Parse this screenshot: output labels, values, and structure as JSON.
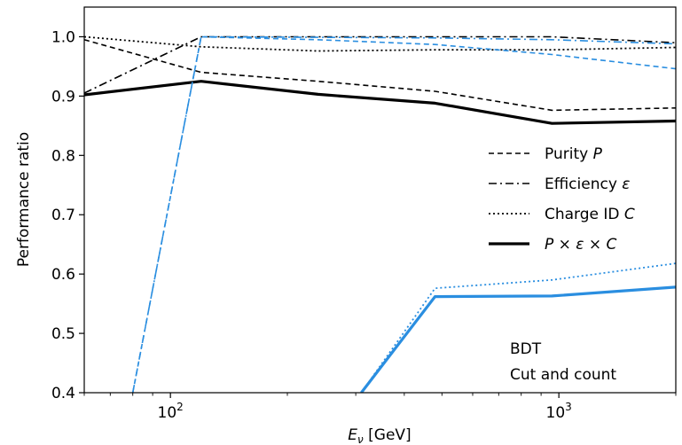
{
  "chart_data": {
    "type": "line",
    "xlabel_main": "E",
    "xlabel_sub": "ν",
    "xlabel_unit": " [GeV]",
    "ylabel": "Performance ratio",
    "xscale": "log",
    "xlim": [
      60,
      2000
    ],
    "ylim": [
      0.4,
      1.05
    ],
    "x_ticks": [
      {
        "value": 100,
        "base": "10",
        "exp": "2"
      },
      {
        "value": 1000,
        "base": "10",
        "exp": "3"
      }
    ],
    "y_ticks": [
      0.4,
      0.5,
      0.6,
      0.7,
      0.8,
      0.9,
      1.0
    ],
    "y_tick_labels": [
      "0.4",
      "0.5",
      "0.6",
      "0.7",
      "0.8",
      "0.9",
      "1.0"
    ],
    "grid": false,
    "legend_position": "center-right",
    "legend": [
      {
        "style": "dashed",
        "label": "Purity ",
        "symbol": "P"
      },
      {
        "style": "dashdot",
        "label": "Efficiency ",
        "symbol": "ε"
      },
      {
        "style": "dotted",
        "label": "Charge ID ",
        "symbol": "C"
      },
      {
        "style": "solid-thick",
        "label": "",
        "symbol": "P × ε × C"
      }
    ],
    "annotations": [
      {
        "text": "BDT",
        "color": "#000000"
      },
      {
        "text": "Cut and count",
        "color": "#2a8ee0"
      }
    ],
    "colors": {
      "bdt": "#000000",
      "cut_and_count": "#2a8ee0"
    },
    "series": [
      {
        "group": "BDT",
        "metric": "purity",
        "style": "dashed",
        "color": "#000000",
        "points": [
          [
            60,
            0.995
          ],
          [
            120,
            0.94
          ],
          [
            240,
            0.925
          ],
          [
            480,
            0.908
          ],
          [
            960,
            0.876
          ],
          [
            2000,
            0.88
          ]
        ]
      },
      {
        "group": "BDT",
        "metric": "efficiency",
        "style": "dashdot",
        "color": "#000000",
        "points": [
          [
            60,
            0.905
          ],
          [
            120,
            1.0
          ],
          [
            240,
            1.0
          ],
          [
            480,
            1.0
          ],
          [
            960,
            1.0
          ],
          [
            2000,
            0.99
          ]
        ]
      },
      {
        "group": "BDT",
        "metric": "charge_id",
        "style": "dotted",
        "color": "#000000",
        "points": [
          [
            60,
            1.0
          ],
          [
            120,
            0.983
          ],
          [
            240,
            0.976
          ],
          [
            480,
            0.978
          ],
          [
            960,
            0.978
          ],
          [
            2000,
            0.982
          ]
        ]
      },
      {
        "group": "BDT",
        "metric": "product",
        "style": "solid-thick",
        "color": "#000000",
        "points": [
          [
            60,
            0.902
          ],
          [
            120,
            0.925
          ],
          [
            240,
            0.903
          ],
          [
            480,
            0.888
          ],
          [
            960,
            0.854
          ],
          [
            2000,
            0.858
          ]
        ]
      },
      {
        "group": "Cut and count",
        "metric": "purity",
        "style": "dashed",
        "color": "#2a8ee0",
        "points": [
          [
            80,
            0.4
          ],
          [
            120,
            1.0
          ],
          [
            240,
            0.995
          ],
          [
            480,
            0.987
          ],
          [
            960,
            0.97
          ],
          [
            2000,
            0.946
          ]
        ]
      },
      {
        "group": "Cut and count",
        "metric": "efficiency",
        "style": "dashdot",
        "color": "#2a8ee0",
        "points": [
          [
            80,
            0.4
          ],
          [
            120,
            1.0
          ],
          [
            240,
            0.999
          ],
          [
            480,
            0.998
          ],
          [
            960,
            0.995
          ],
          [
            2000,
            0.988
          ]
        ]
      },
      {
        "group": "Cut and count",
        "metric": "charge_id",
        "style": "dotted",
        "color": "#2a8ee0",
        "points": [
          [
            310,
            0.4
          ],
          [
            480,
            0.576
          ],
          [
            960,
            0.59
          ],
          [
            2000,
            0.618
          ]
        ]
      },
      {
        "group": "Cut and count",
        "metric": "product",
        "style": "solid-thick",
        "color": "#2a8ee0",
        "points": [
          [
            310,
            0.4
          ],
          [
            480,
            0.562
          ],
          [
            960,
            0.563
          ],
          [
            2000,
            0.578
          ]
        ]
      }
    ]
  }
}
